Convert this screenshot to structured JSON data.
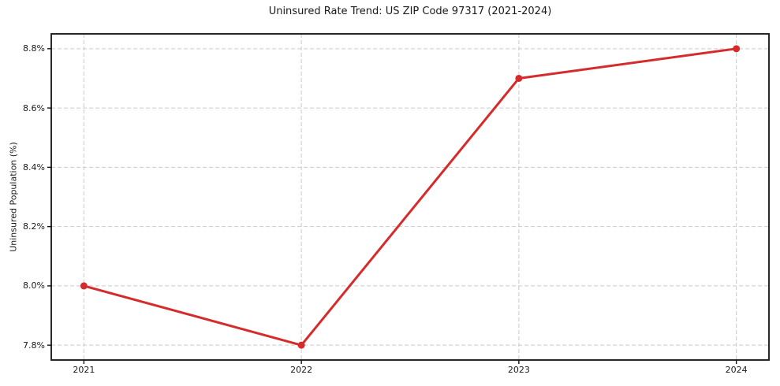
{
  "figure": {
    "background_color": "#ffffff"
  },
  "chart_data": {
    "type": "line",
    "title": "Uninsured Rate Trend: US ZIP Code 97317 (2021-2024)",
    "xlabel": "",
    "ylabel": "Uninsured Population (%)",
    "x": [
      2021,
      2022,
      2023,
      2024
    ],
    "x_tick_labels": [
      "2021",
      "2022",
      "2023",
      "2024"
    ],
    "values": [
      8.0,
      7.8,
      8.7,
      8.8
    ],
    "y_ticks": [
      7.8,
      8.0,
      8.2,
      8.4,
      8.6,
      8.8
    ],
    "y_tick_labels": [
      "7.8%",
      "8.0%",
      "8.2%",
      "8.4%",
      "8.6%",
      "8.8%"
    ],
    "ylim": [
      7.75,
      8.85
    ],
    "xlim": [
      2020.85,
      2024.15
    ],
    "grid": "dashed, both axes",
    "legend": "none",
    "line_color": "#d62b2b",
    "marker": "circle",
    "grid_color": "#c9c9c9",
    "spine_color": "#111111"
  }
}
